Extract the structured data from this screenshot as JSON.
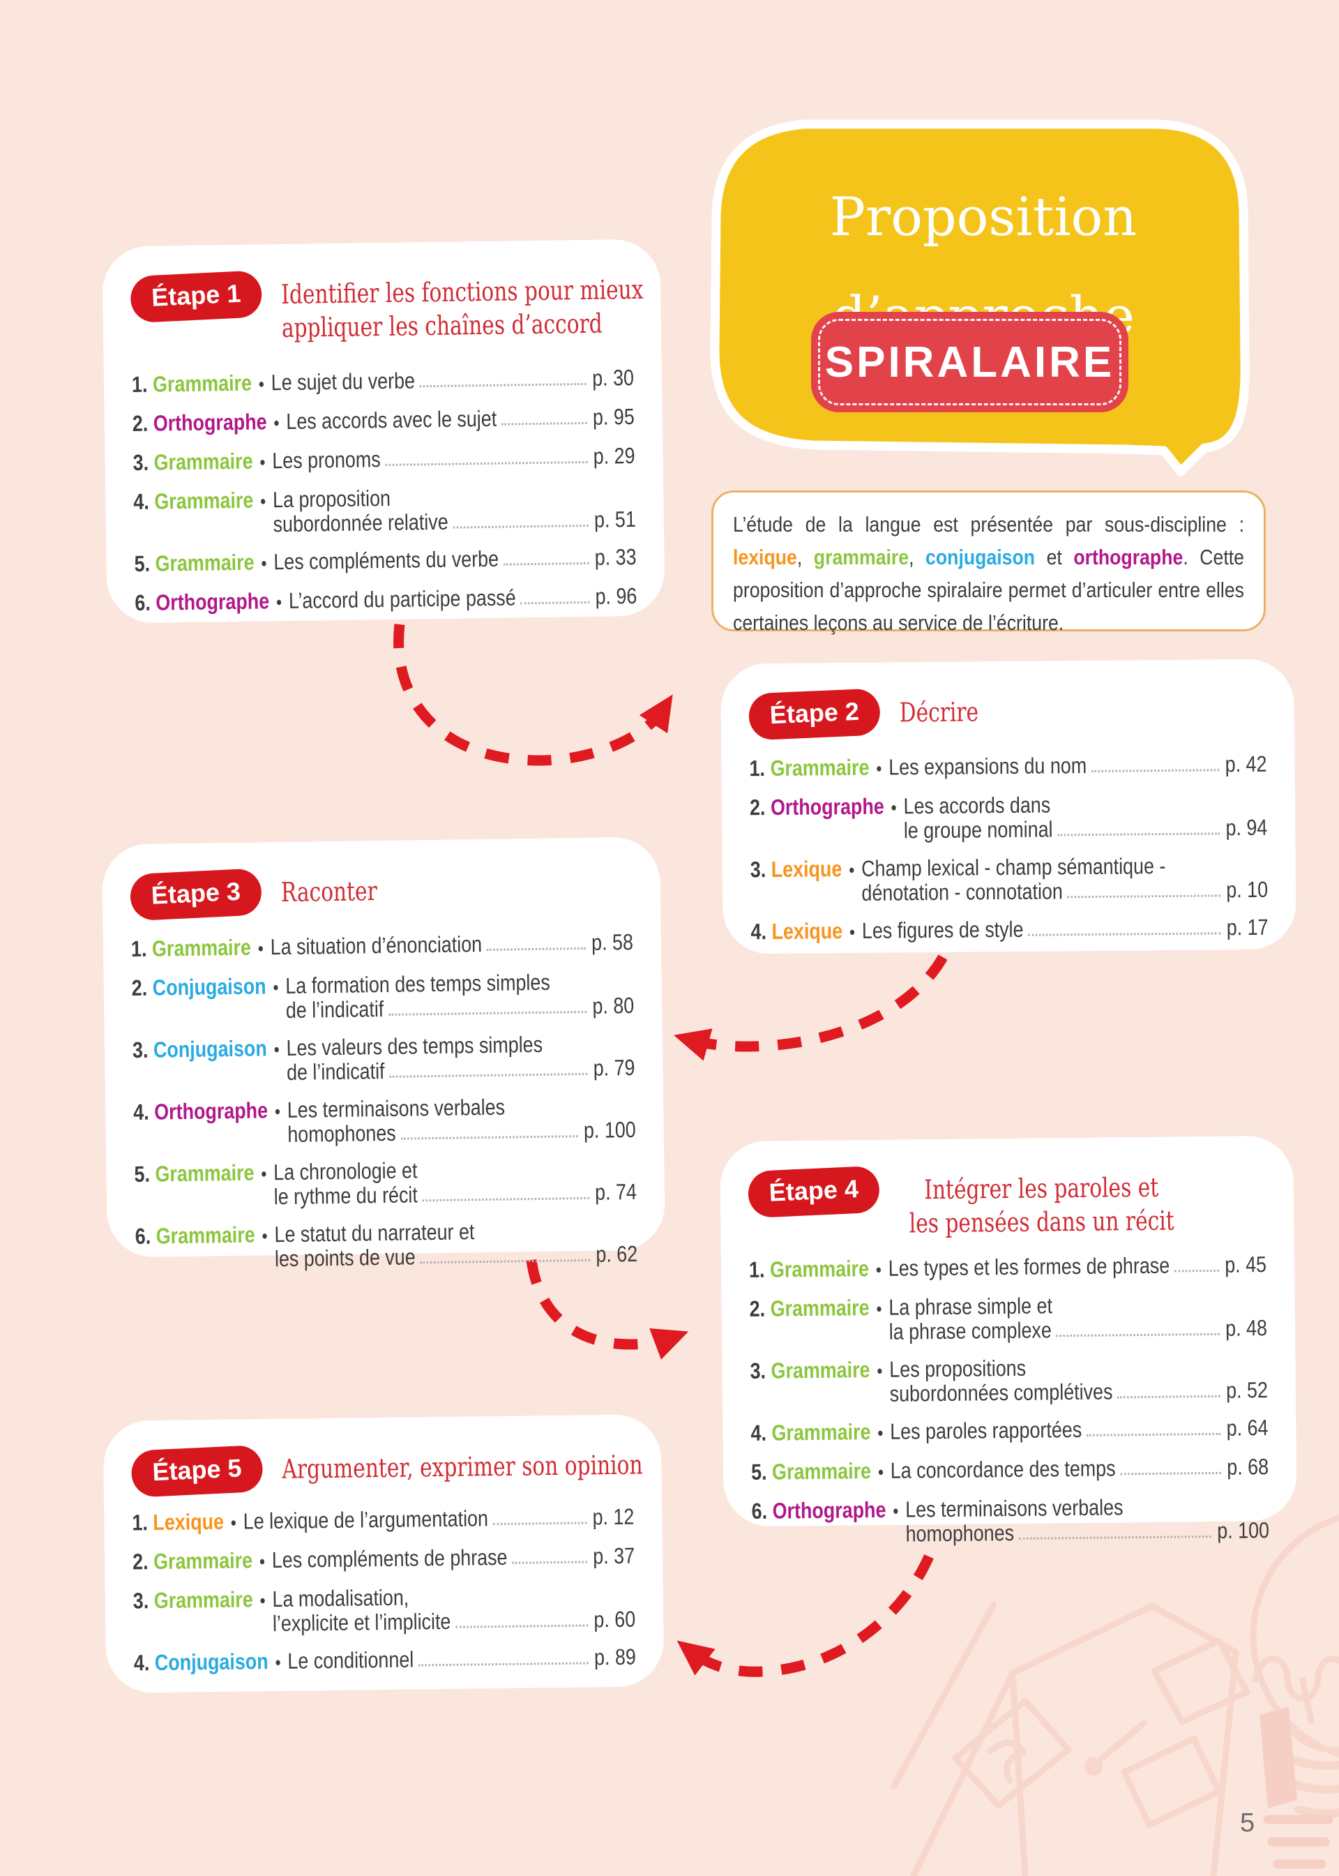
{
  "colors": {
    "bg": "#fbe6de",
    "card": "#ffffff",
    "badge_red": "#d7171e",
    "title_red": "#d22b33",
    "yellow": "#f5c41b",
    "pill_red": "#e2434b",
    "arrow_red": "#df1a20",
    "intro_border": "#eab166",
    "text": "#3d3d3c",
    "leader": "#b0aeae",
    "illus": "#f7d6cc",
    "illus_fill": "#f6cfc4",
    "page_num": "#6d6d6d"
  },
  "subject_colors": {
    "grammaire": "#8cc63e",
    "orthographe": "#b0188c",
    "conjugaison": "#29abe2",
    "lexique": "#f7941e"
  },
  "glyphs": {
    "bullet": "•"
  },
  "page": {
    "number": "5"
  },
  "bubble": {
    "line1": "Proposition",
    "line2": "d’approche",
    "pill": "SPIRALAIRE"
  },
  "intro": {
    "segments": [
      {
        "text": "L’étude de la langue est présentée par sous-discipline : "
      },
      {
        "text": "lexique",
        "key": "lexique"
      },
      {
        "text": ", "
      },
      {
        "text": "grammaire",
        "key": "grammaire"
      },
      {
        "text": ", "
      },
      {
        "text": "conjugaison",
        "key": "conjugaison"
      },
      {
        "text": " et "
      },
      {
        "text": "orthographe",
        "key": "orthographe"
      },
      {
        "text": ". Cette proposition d’approche spiralaire permet d’articuler entre elles certaines leçons au service de l’écriture."
      }
    ]
  },
  "steps": [
    {
      "badge": "Étape 1",
      "title_lines": [
        "Identifier les fonctions pour mieux",
        "appliquer les chaînes d’accord"
      ],
      "items": [
        {
          "num": "1.",
          "key": "grammaire",
          "category": "Grammaire",
          "lines": [
            "Le sujet du verbe"
          ],
          "page": "p. 30"
        },
        {
          "num": "2.",
          "key": "orthographe",
          "category": "Orthographe",
          "lines": [
            "Les accords avec le sujet"
          ],
          "page": "p. 95"
        },
        {
          "num": "3.",
          "key": "grammaire",
          "category": "Grammaire",
          "lines": [
            "Les pronoms"
          ],
          "page": "p. 29"
        },
        {
          "num": "4.",
          "key": "grammaire",
          "category": "Grammaire",
          "lines": [
            "La proposition",
            "subordonnée relative"
          ],
          "page": "p. 51"
        },
        {
          "num": "5.",
          "key": "grammaire",
          "category": "Grammaire",
          "lines": [
            "Les compléments du verbe"
          ],
          "page": "p. 33"
        },
        {
          "num": "6.",
          "key": "orthographe",
          "category": "Orthographe",
          "lines": [
            "L’accord du participe passé"
          ],
          "page": "p. 96"
        }
      ]
    },
    {
      "badge": "Étape 2",
      "title_lines": [
        "Décrire"
      ],
      "items": [
        {
          "num": "1.",
          "key": "grammaire",
          "category": "Grammaire",
          "lines": [
            "Les expansions du nom"
          ],
          "page": "p. 42"
        },
        {
          "num": "2.",
          "key": "orthographe",
          "category": "Orthographe",
          "lines": [
            "Les accords dans",
            "le groupe nominal"
          ],
          "page": "p. 94"
        },
        {
          "num": "3.",
          "key": "lexique",
          "category": "Lexique",
          "lines": [
            "Champ lexical - champ sémantique -",
            "dénotation - connotation"
          ],
          "page": "p. 10"
        },
        {
          "num": "4.",
          "key": "lexique",
          "category": "Lexique",
          "lines": [
            "Les figures de style"
          ],
          "page": "p. 17"
        }
      ]
    },
    {
      "badge": "Étape 3",
      "title_lines": [
        "Raconter"
      ],
      "items": [
        {
          "num": "1.",
          "key": "grammaire",
          "category": "Grammaire",
          "lines": [
            "La situation d’énonciation"
          ],
          "page": "p. 58"
        },
        {
          "num": "2.",
          "key": "conjugaison",
          "category": "Conjugaison",
          "lines": [
            "La formation des temps simples",
            "de l’indicatif"
          ],
          "page": "p. 80"
        },
        {
          "num": "3.",
          "key": "conjugaison",
          "category": "Conjugaison",
          "lines": [
            "Les valeurs des temps simples",
            "de l’indicatif"
          ],
          "page": "p. 79"
        },
        {
          "num": "4.",
          "key": "orthographe",
          "category": "Orthographe",
          "lines": [
            "Les terminaisons verbales",
            "homophones"
          ],
          "page": "p. 100"
        },
        {
          "num": "5.",
          "key": "grammaire",
          "category": "Grammaire",
          "lines": [
            "La chronologie et",
            "le rythme du récit"
          ],
          "page": "p. 74"
        },
        {
          "num": "6.",
          "key": "grammaire",
          "category": "Grammaire",
          "lines": [
            "Le statut du narrateur et",
            "les points de vue"
          ],
          "page": "p. 62"
        }
      ]
    },
    {
      "badge": "Étape 4",
      "title_lines": [
        "Intégrer les paroles et",
        "les pensées dans un récit"
      ],
      "items": [
        {
          "num": "1.",
          "key": "grammaire",
          "category": "Grammaire",
          "lines": [
            "Les types et les formes de phrase"
          ],
          "page": "p. 45"
        },
        {
          "num": "2.",
          "key": "grammaire",
          "category": "Grammaire",
          "lines": [
            "La phrase simple et",
            "la phrase complexe"
          ],
          "page": "p. 48"
        },
        {
          "num": "3.",
          "key": "grammaire",
          "category": "Grammaire",
          "lines": [
            "Les propositions",
            "subordonnées complétives"
          ],
          "page": "p. 52"
        },
        {
          "num": "4.",
          "key": "grammaire",
          "category": "Grammaire",
          "lines": [
            "Les paroles rapportées"
          ],
          "page": "p. 64"
        },
        {
          "num": "5.",
          "key": "grammaire",
          "category": "Grammaire",
          "lines": [
            "La concordance des temps"
          ],
          "page": "p. 68"
        },
        {
          "num": "6.",
          "key": "orthographe",
          "category": "Orthographe",
          "lines": [
            "Les terminaisons verbales",
            "homophones"
          ],
          "page": "p. 100"
        }
      ]
    },
    {
      "badge": "Étape 5",
      "title_lines": [
        "Argumenter, exprimer son opinion"
      ],
      "items": [
        {
          "num": "1.",
          "key": "lexique",
          "category": "Lexique",
          "lines": [
            "Le lexique de l’argumentation"
          ],
          "page": "p. 12"
        },
        {
          "num": "2.",
          "key": "grammaire",
          "category": "Grammaire",
          "lines": [
            "Les compléments de phrase"
          ],
          "page": "p. 37"
        },
        {
          "num": "3.",
          "key": "grammaire",
          "category": "Grammaire",
          "lines": [
            "La modalisation,",
            "l’explicite et l’implicite"
          ],
          "page": "p. 60"
        },
        {
          "num": "4.",
          "key": "conjugaison",
          "category": "Conjugaison",
          "lines": [
            "Le conditionnel"
          ],
          "page": "p. 89"
        }
      ]
    }
  ]
}
